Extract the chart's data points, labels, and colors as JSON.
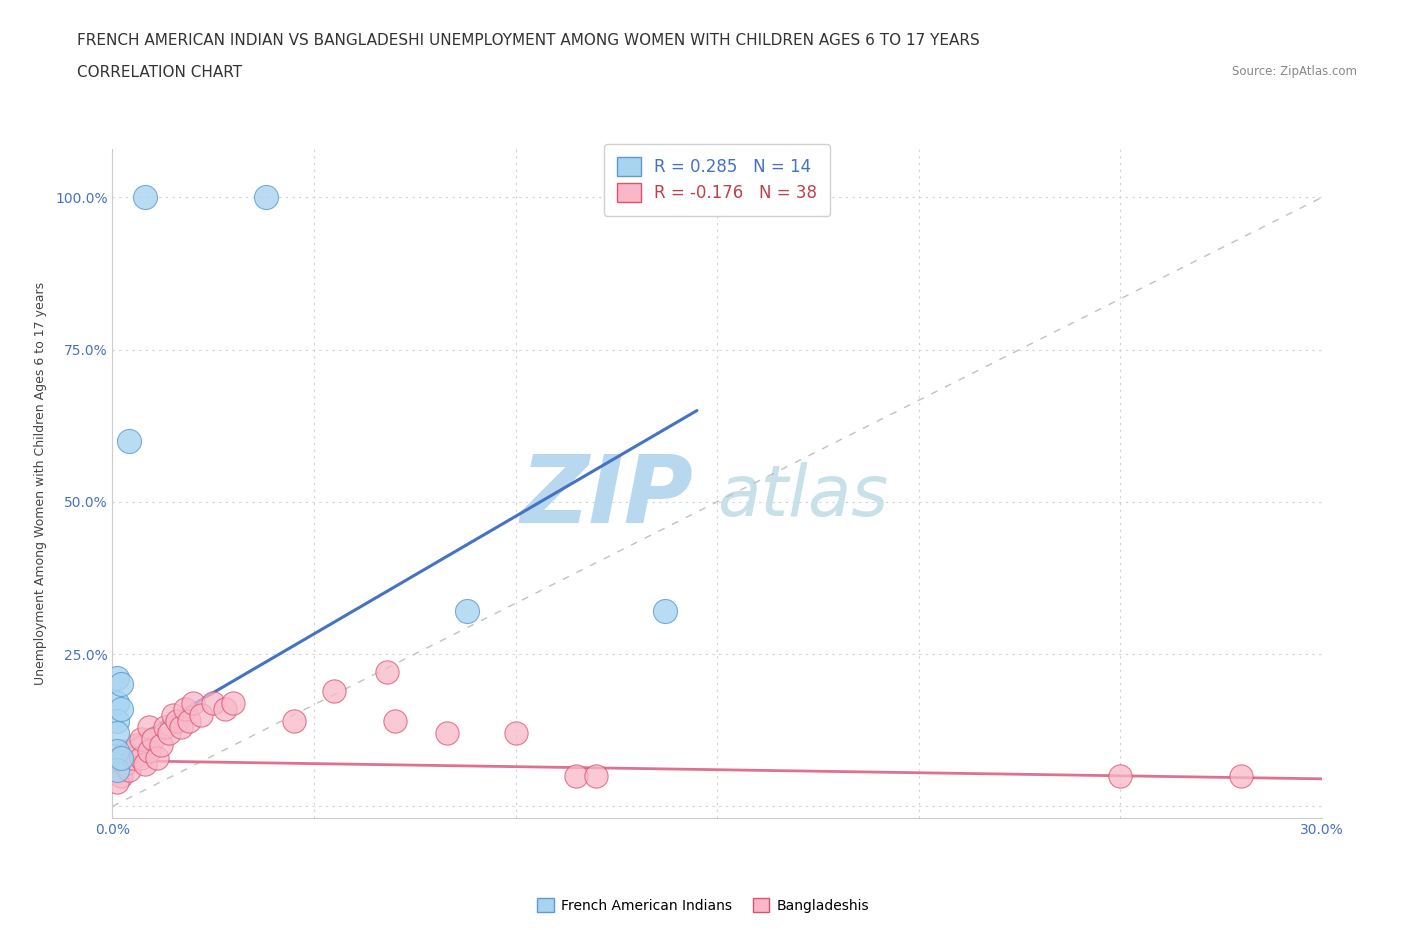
{
  "title_line1": "FRENCH AMERICAN INDIAN VS BANGLADESHI UNEMPLOYMENT AMONG WOMEN WITH CHILDREN AGES 6 TO 17 YEARS",
  "title_line2": "CORRELATION CHART",
  "source_text": "Source: ZipAtlas.com",
  "ylabel": "Unemployment Among Women with Children Ages 6 to 17 years",
  "watermark_zip": "ZIP",
  "watermark_atlas": "atlas",
  "xlim": [
    0.0,
    0.3
  ],
  "ylim": [
    -0.02,
    1.08
  ],
  "xticks": [
    0.0,
    0.05,
    0.1,
    0.15,
    0.2,
    0.25,
    0.3
  ],
  "xticklabels": [
    "0.0%",
    "",
    "",
    "",
    "",
    "",
    "30.0%"
  ],
  "yticks": [
    0.0,
    0.25,
    0.5,
    0.75,
    1.0
  ],
  "yticklabels": [
    "",
    "25.0%",
    "50.0%",
    "75.0%",
    "100.0%"
  ],
  "french_x": [
    0.008,
    0.038,
    0.001,
    0.001,
    0.001,
    0.001,
    0.001,
    0.001,
    0.002,
    0.002,
    0.002,
    0.004,
    0.088,
    0.137
  ],
  "french_y": [
    1.0,
    1.0,
    0.21,
    0.17,
    0.14,
    0.12,
    0.09,
    0.06,
    0.2,
    0.16,
    0.08,
    0.6,
    0.32,
    0.32
  ],
  "bangladeshi_x": [
    0.001,
    0.002,
    0.001,
    0.003,
    0.003,
    0.004,
    0.005,
    0.006,
    0.007,
    0.007,
    0.008,
    0.009,
    0.009,
    0.01,
    0.011,
    0.012,
    0.013,
    0.014,
    0.015,
    0.016,
    0.017,
    0.018,
    0.019,
    0.02,
    0.022,
    0.025,
    0.028,
    0.03,
    0.045,
    0.055,
    0.068,
    0.07,
    0.083,
    0.1,
    0.115,
    0.12,
    0.25,
    0.28
  ],
  "bangladeshi_y": [
    0.07,
    0.05,
    0.04,
    0.07,
    0.09,
    0.06,
    0.08,
    0.1,
    0.08,
    0.11,
    0.07,
    0.09,
    0.13,
    0.11,
    0.08,
    0.1,
    0.13,
    0.12,
    0.15,
    0.14,
    0.13,
    0.16,
    0.14,
    0.17,
    0.15,
    0.17,
    0.16,
    0.17,
    0.14,
    0.19,
    0.22,
    0.14,
    0.12,
    0.12,
    0.05,
    0.05,
    0.05,
    0.05
  ],
  "french_color": "#a8d4f0",
  "french_edge_color": "#5b9bd5",
  "bangladeshi_color": "#f8b8c8",
  "bangladeshi_edge_color": "#e05070",
  "french_R": 0.285,
  "french_N": 14,
  "bangladeshi_R": -0.176,
  "bangladeshi_N": 38,
  "blue_trend_x0": 0.0,
  "blue_trend_y0": 0.09,
  "blue_trend_x1": 0.145,
  "blue_trend_y1": 0.65,
  "pink_trend_x0": 0.0,
  "pink_trend_y0": 0.075,
  "pink_trend_x1": 0.3,
  "pink_trend_y1": 0.045,
  "trend_blue_color": "#4472c4",
  "trend_pink_color": "#e07090",
  "diag_color": "#bbbbbb",
  "background_color": "#ffffff",
  "grid_color": "#cccccc",
  "title_fontsize": 11,
  "axis_label_fontsize": 9,
  "tick_fontsize": 10,
  "legend_fontsize": 12,
  "watermark_color_zip": "#b8d8f0",
  "watermark_color_atlas": "#c8e0e8",
  "watermark_fontsize": 68
}
